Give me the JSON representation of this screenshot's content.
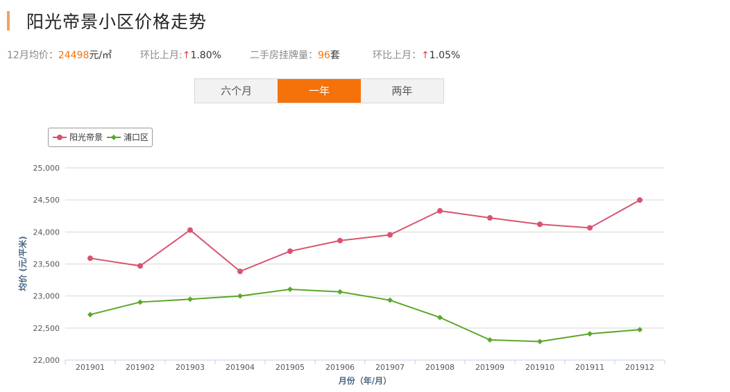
{
  "header": {
    "title": "阳光帝景小区价格走势"
  },
  "stats": {
    "avg_label": "12月均价：",
    "avg_value": "24498",
    "avg_unit": "元/㎡",
    "mom1_label": "环比上月:",
    "mom1_arrow": "↑",
    "mom1_value": "1.80%",
    "listings_label": "二手房挂牌量：",
    "listings_value": "96",
    "listings_unit": "套",
    "mom2_label": "环比上月：",
    "mom2_arrow": "↑",
    "mom2_value": "1.05%"
  },
  "tabs": [
    {
      "label": "六个月",
      "active": false
    },
    {
      "label": "一年",
      "active": true
    },
    {
      "label": "两年",
      "active": false
    }
  ],
  "colors": {
    "accent": "#f5720a",
    "series1": "#d9536f",
    "series2": "#5ba62a"
  },
  "chart_data": {
    "type": "line",
    "xlabel": "月份（年/月）",
    "ylabel": "均价 (元/平米)",
    "ylim": [
      22000,
      25000
    ],
    "yticks": [
      "22,000",
      "22,500",
      "23,000",
      "23,500",
      "24,000",
      "24,500",
      "25,000"
    ],
    "ytick_values": [
      22000,
      22500,
      23000,
      23500,
      24000,
      24500,
      25000
    ],
    "categories": [
      "201901",
      "201902",
      "201903",
      "201904",
      "201905",
      "201906",
      "201907",
      "201908",
      "201909",
      "201910",
      "201911",
      "201912"
    ],
    "legend": "top-left",
    "grid": true,
    "series": [
      {
        "name": "阳光帝景",
        "color": "#d9536f",
        "marker": "circle",
        "values": [
          23590,
          23470,
          24030,
          23385,
          23700,
          23865,
          23955,
          24330,
          24220,
          24120,
          24065,
          24498
        ]
      },
      {
        "name": "浦口区",
        "color": "#5ba62a",
        "marker": "diamond",
        "values": [
          22710,
          22905,
          22950,
          23000,
          23105,
          23065,
          22935,
          22665,
          22315,
          22290,
          22410,
          22475
        ]
      }
    ]
  }
}
